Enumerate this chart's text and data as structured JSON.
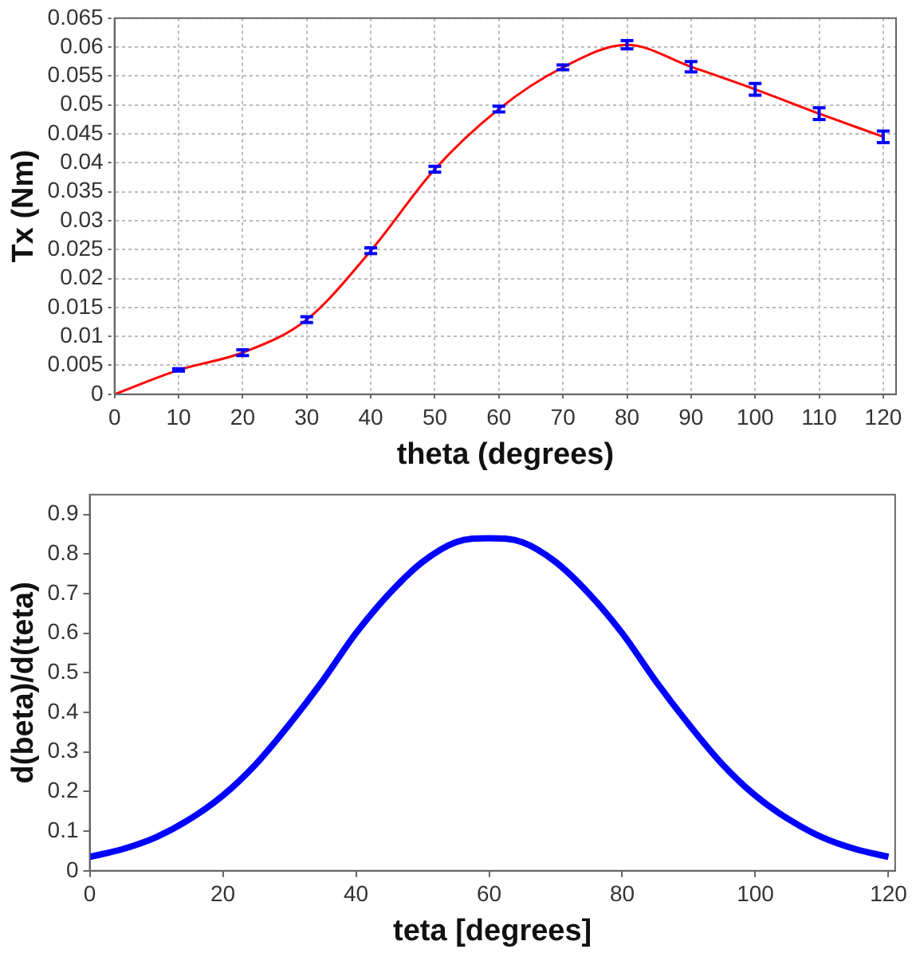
{
  "chart_data": [
    {
      "type": "line",
      "xlabel": "theta (degrees)",
      "ylabel": "Tx (Nm)",
      "x": [
        0,
        10,
        20,
        30,
        40,
        50,
        60,
        70,
        80,
        90,
        100,
        110,
        120
      ],
      "series": [
        {
          "color": "#ff0000",
          "values": [
            0,
            0.0042,
            0.0072,
            0.0129,
            0.0248,
            0.0389,
            0.0493,
            0.0565,
            0.0604,
            0.0566,
            0.0527,
            0.0485,
            0.0445
          ],
          "errors": [
            null,
            0.0002,
            0.0005,
            0.0005,
            0.0005,
            0.0005,
            0.0005,
            0.0004,
            0.0007,
            0.0009,
            0.001,
            0.001,
            0.001
          ]
        }
      ],
      "xlim": [
        0,
        122
      ],
      "xticks": [
        0,
        10,
        20,
        30,
        40,
        50,
        60,
        70,
        80,
        90,
        100,
        110,
        120
      ],
      "ylim": [
        0,
        0.065
      ],
      "yticks": [
        0,
        0.005,
        0.01,
        0.015,
        0.02,
        0.025,
        0.03,
        0.035,
        0.04,
        0.045,
        0.05,
        0.055,
        0.06,
        0.065
      ],
      "grid": true,
      "legend": false,
      "marker": "none",
      "line_style": "solid"
    },
    {
      "type": "line",
      "xlabel": "teta [degrees]",
      "ylabel": "d(beta)/d(teta)",
      "x": [
        0,
        5,
        10,
        15,
        20,
        25,
        30,
        35,
        40,
        45,
        50,
        55,
        60,
        65,
        70,
        75,
        80,
        85,
        90,
        95,
        100,
        105,
        110,
        115,
        120
      ],
      "series": [
        {
          "color": "#0000ff",
          "values": [
            0.035,
            0.055,
            0.085,
            0.13,
            0.19,
            0.27,
            0.37,
            0.48,
            0.6,
            0.7,
            0.78,
            0.83,
            0.84,
            0.83,
            0.78,
            0.7,
            0.6,
            0.48,
            0.37,
            0.27,
            0.19,
            0.13,
            0.085,
            0.055,
            0.035
          ]
        }
      ],
      "xlim": [
        0,
        121
      ],
      "xticks": [
        0,
        20,
        40,
        60,
        80,
        100,
        120
      ],
      "ylim": [
        0,
        0.95
      ],
      "yticks": [
        0,
        0.1,
        0.2,
        0.3,
        0.4,
        0.5,
        0.6,
        0.7,
        0.8,
        0.9
      ],
      "grid": false,
      "legend": false,
      "marker": "none",
      "line_style": "solid"
    }
  ]
}
